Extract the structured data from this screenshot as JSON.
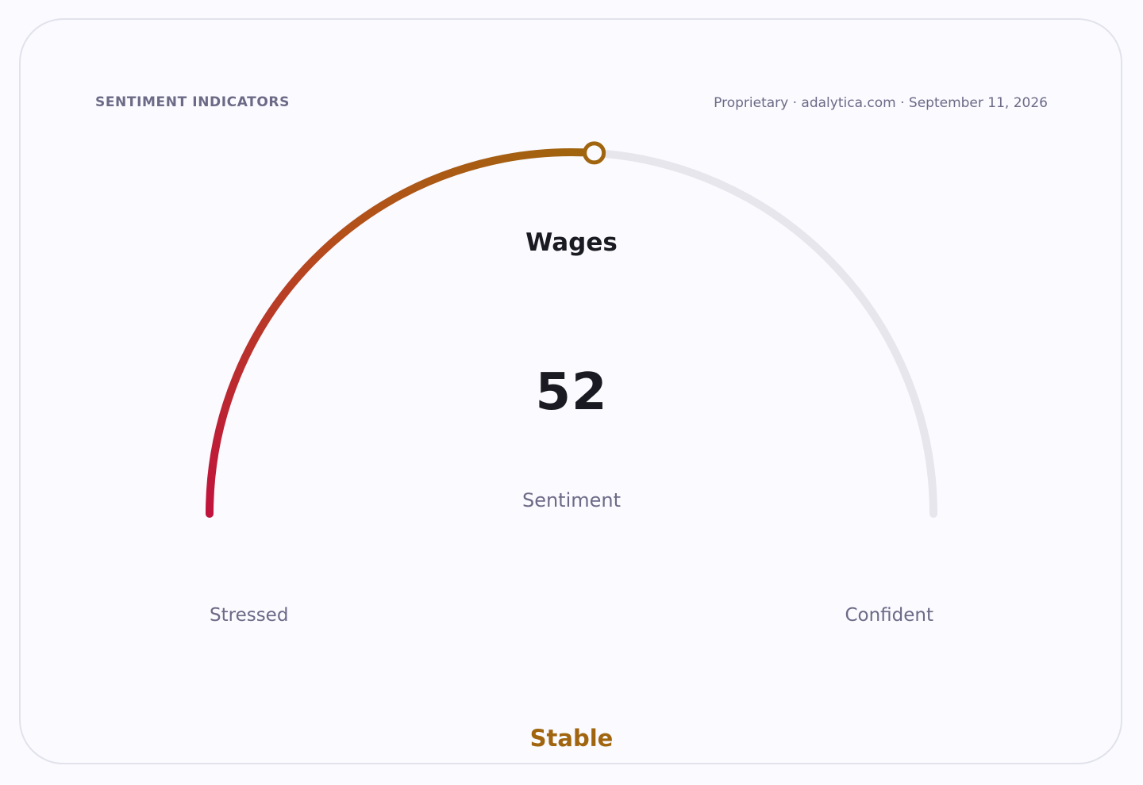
{
  "header": {
    "section_title": "SENTIMENT INDICATORS",
    "source": "Proprietary · adalytica.com · September 11, 2026"
  },
  "chart_data": {
    "type": "gauge",
    "title": "Wages",
    "value": 52,
    "value_label": "52",
    "unit_label": "Sentiment",
    "range": [
      0,
      100
    ],
    "min_label": "Stressed",
    "max_label": "Confident",
    "status": "Stable",
    "colors": {
      "start": "#c0143c",
      "mid": "#b4501a",
      "end": "#a0650e",
      "track": "#e6e6ec",
      "status": "#a0650e"
    }
  }
}
